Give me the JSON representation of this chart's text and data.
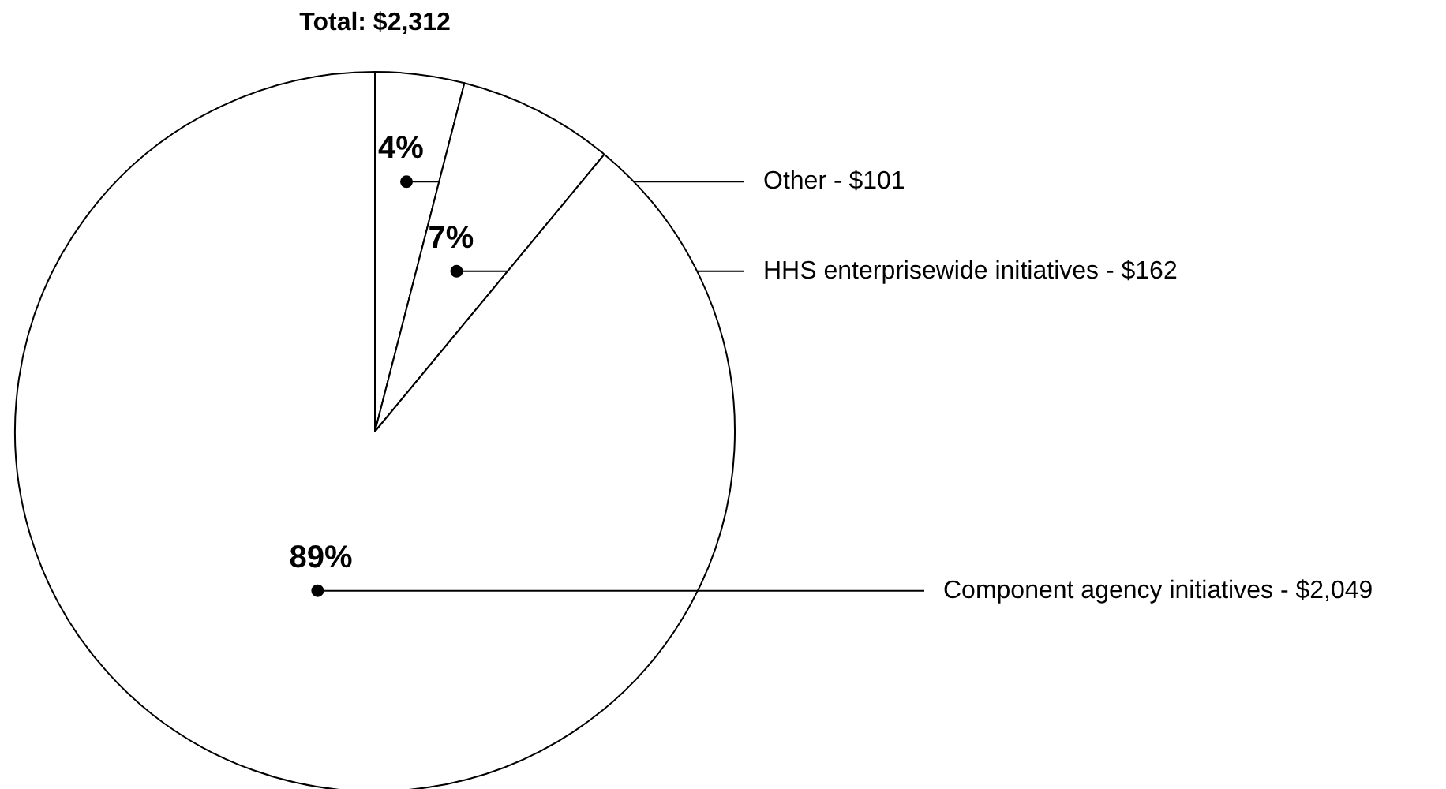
{
  "chart_data": {
    "type": "pie",
    "title": "Total: $2,312",
    "categories": [
      "Other - $101",
      "HHS enterprisewide initiatives - $162",
      "Component agency initiatives - $2,049"
    ],
    "values": [
      4,
      7,
      89
    ],
    "value_labels": [
      "4%",
      "7%",
      "89%"
    ],
    "colors": [
      "#ffffff",
      "#ffffff",
      "#ffffff"
    ]
  }
}
